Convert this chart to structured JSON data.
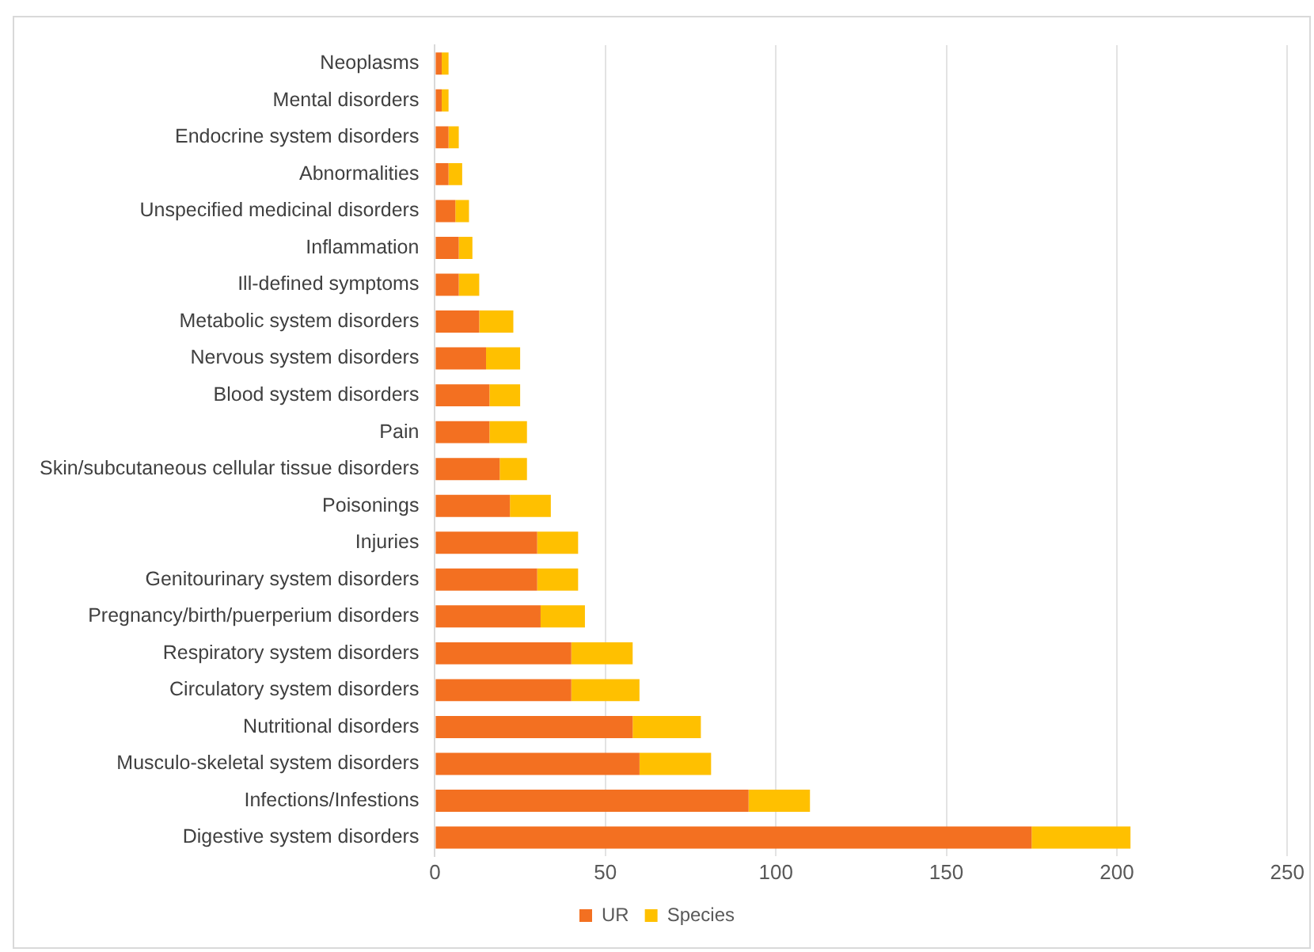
{
  "chart_data": {
    "type": "bar",
    "orientation": "horizontal",
    "stacked": true,
    "categories": [
      "Neoplasms",
      "Mental disorders",
      "Endocrine system disorders",
      "Abnormalities",
      "Unspecified medicinal disorders",
      "Inflammation",
      "Ill-defined symptoms",
      "Metabolic system disorders",
      "Nervous system disorders",
      "Blood system disorders",
      "Pain",
      "Skin/subcutaneous cellular tissue disorders",
      "Poisonings",
      "Injuries",
      "Genitourinary system disorders",
      "Pregnancy/birth/puerperium disorders",
      "Respiratory system disorders",
      "Circulatory system disorders",
      "Nutritional disorders",
      "Musculo-skeletal system disorders",
      "Infections/Infestions",
      "Digestive system disorders"
    ],
    "series": [
      {
        "name": "UR",
        "color": "#f37021",
        "values": [
          2,
          2,
          4,
          4,
          6,
          7,
          7,
          13,
          15,
          16,
          16,
          19,
          22,
          30,
          30,
          31,
          40,
          40,
          58,
          60,
          92,
          175
        ]
      },
      {
        "name": "Species",
        "color": "#ffc000",
        "values": [
          2,
          2,
          3,
          4,
          4,
          4,
          6,
          10,
          10,
          9,
          11,
          8,
          12,
          12,
          12,
          13,
          18,
          20,
          20,
          21,
          18,
          29
        ]
      }
    ],
    "xlim": [
      0,
      250
    ],
    "xticks": [
      0,
      50,
      100,
      150,
      200,
      250
    ],
    "grid": "x",
    "legend": "bottom"
  }
}
